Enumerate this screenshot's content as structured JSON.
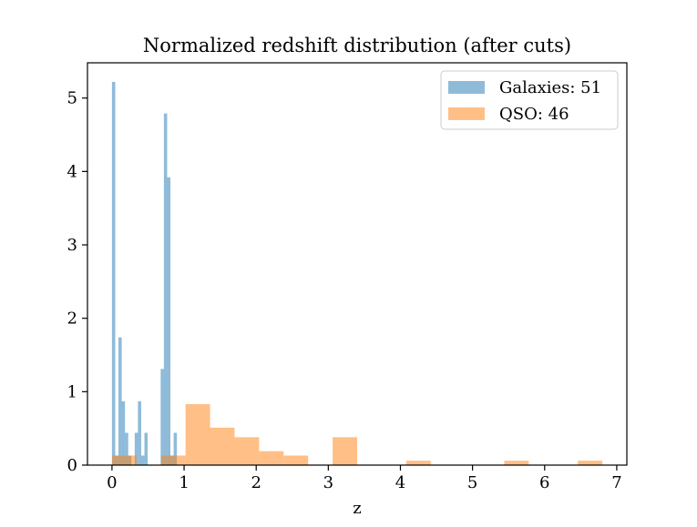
{
  "chart_data": {
    "type": "histogram",
    "title": "Normalized redshift distribution (after cuts)",
    "xlabel": "z",
    "ylabel": "",
    "xlim": [
      -0.34,
      7.14
    ],
    "ylim": [
      0,
      5.48
    ],
    "xticks": [
      "0",
      "1",
      "2",
      "3",
      "4",
      "5",
      "6",
      "7"
    ],
    "yticks": [
      "0",
      "1",
      "2",
      "3",
      "4",
      "5"
    ],
    "legend_position": "top-right",
    "series": [
      {
        "name": "Galaxies: 51",
        "color": "#1f77b4",
        "opacity": 0.5,
        "bins": [
          {
            "x0": 0.0,
            "x1": 0.045,
            "value": 5.22
          },
          {
            "x0": 0.045,
            "x1": 0.09,
            "value": 0.13
          },
          {
            "x0": 0.09,
            "x1": 0.135,
            "value": 1.74
          },
          {
            "x0": 0.135,
            "x1": 0.18,
            "value": 0.87
          },
          {
            "x0": 0.18,
            "x1": 0.225,
            "value": 0.44
          },
          {
            "x0": 0.225,
            "x1": 0.27,
            "value": 0.13
          },
          {
            "x0": 0.315,
            "x1": 0.36,
            "value": 0.44
          },
          {
            "x0": 0.36,
            "x1": 0.405,
            "value": 0.87
          },
          {
            "x0": 0.405,
            "x1": 0.45,
            "value": 0.13
          },
          {
            "x0": 0.45,
            "x1": 0.495,
            "value": 0.44
          },
          {
            "x0": 0.675,
            "x1": 0.72,
            "value": 1.31
          },
          {
            "x0": 0.72,
            "x1": 0.765,
            "value": 4.79
          },
          {
            "x0": 0.765,
            "x1": 0.81,
            "value": 3.92
          },
          {
            "x0": 0.81,
            "x1": 0.855,
            "value": 0.13
          },
          {
            "x0": 0.855,
            "x1": 0.9,
            "value": 0.44
          }
        ]
      },
      {
        "name": "QSO: 46",
        "color": "#ff7f0e",
        "opacity": 0.5,
        "bins": [
          {
            "x0": 0.0,
            "x1": 0.34,
            "value": 0.13
          },
          {
            "x0": 0.34,
            "x1": 0.68,
            "value": 0.0
          },
          {
            "x0": 0.68,
            "x1": 1.02,
            "value": 0.13
          },
          {
            "x0": 1.02,
            "x1": 1.36,
            "value": 0.83
          },
          {
            "x0": 1.36,
            "x1": 1.7,
            "value": 0.51
          },
          {
            "x0": 1.7,
            "x1": 2.04,
            "value": 0.38
          },
          {
            "x0": 2.04,
            "x1": 2.38,
            "value": 0.19
          },
          {
            "x0": 2.38,
            "x1": 2.72,
            "value": 0.13
          },
          {
            "x0": 3.06,
            "x1": 3.4,
            "value": 0.38
          },
          {
            "x0": 4.08,
            "x1": 4.42,
            "value": 0.06
          },
          {
            "x0": 5.44,
            "x1": 5.78,
            "value": 0.06
          },
          {
            "x0": 6.46,
            "x1": 6.8,
            "value": 0.06
          }
        ]
      }
    ]
  }
}
